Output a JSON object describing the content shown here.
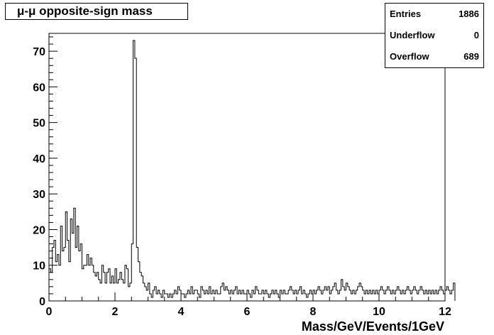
{
  "chart_data": {
    "type": "histogram",
    "title": "μ-μ opposite-sign mass",
    "xlabel": "Mass/GeV/Events/1GeV",
    "ylabel": "",
    "xlim": [
      0,
      12
    ],
    "ylim": [
      0,
      75
    ],
    "bin_width": 0.05,
    "x_ticks": [
      "0",
      "2",
      "4",
      "6",
      "8",
      "10",
      "12"
    ],
    "y_ticks": [
      "0",
      "10",
      "20",
      "30",
      "40",
      "50",
      "60",
      "70"
    ],
    "grid": false,
    "values": [
      9,
      8,
      15,
      17,
      11,
      13,
      10,
      21,
      14,
      15,
      25,
      17,
      11,
      23,
      19,
      26,
      15,
      21,
      14,
      16,
      9,
      10,
      10,
      13,
      10,
      12,
      10,
      8,
      7,
      8,
      6,
      5,
      10,
      8,
      5,
      8,
      9,
      5,
      7,
      5,
      9,
      5,
      6,
      8,
      6,
      5,
      10,
      9,
      4,
      5,
      16,
      73,
      68,
      15,
      11,
      8,
      7,
      5,
      4,
      3,
      5,
      2,
      1,
      3,
      4,
      2,
      3,
      2,
      1,
      3,
      2,
      2,
      1,
      2,
      1,
      2,
      3,
      2,
      4,
      3,
      2,
      2,
      1,
      2,
      3,
      2,
      4,
      2,
      3,
      3,
      2,
      1,
      4,
      3,
      2,
      3,
      2,
      4,
      2,
      3,
      2,
      3,
      2,
      2,
      4,
      5,
      3,
      4,
      3,
      2,
      3,
      2,
      3,
      4,
      2,
      3,
      2,
      3,
      2,
      2,
      3,
      2,
      1,
      3,
      2,
      4,
      3,
      2,
      2,
      3,
      2,
      3,
      2,
      1,
      2,
      3,
      2,
      3,
      2,
      1,
      3,
      2,
      3,
      2,
      2,
      3,
      4,
      3,
      2,
      3,
      2,
      3,
      4,
      2,
      3,
      2,
      1,
      2,
      3,
      2,
      3,
      2,
      3,
      4,
      3,
      2,
      3,
      4,
      3,
      4,
      2,
      3,
      4,
      5,
      3,
      2,
      3,
      6,
      4,
      3,
      5,
      4,
      3,
      2,
      3,
      2,
      3,
      4,
      5,
      4,
      3,
      2,
      3,
      2,
      3,
      2,
      3,
      2,
      3,
      2,
      3,
      4,
      3,
      2,
      3,
      4,
      3,
      2,
      3,
      2,
      3,
      4,
      3,
      2,
      3,
      2,
      3,
      4,
      3,
      2,
      3,
      4,
      3,
      2,
      3,
      4,
      3,
      2,
      3,
      2,
      3,
      2,
      3,
      2,
      3,
      2,
      3,
      4,
      3,
      2,
      3,
      4,
      3,
      2,
      3,
      5
    ]
  },
  "stats": {
    "entries_label": "Entries",
    "entries_value": "1886",
    "underflow_label": "Underflow",
    "underflow_value": "0",
    "overflow_label": "Overflow",
    "overflow_value": "689"
  },
  "colors": {
    "axis": "#000000",
    "histogram_line": "#000000",
    "background": "#ffffff"
  }
}
